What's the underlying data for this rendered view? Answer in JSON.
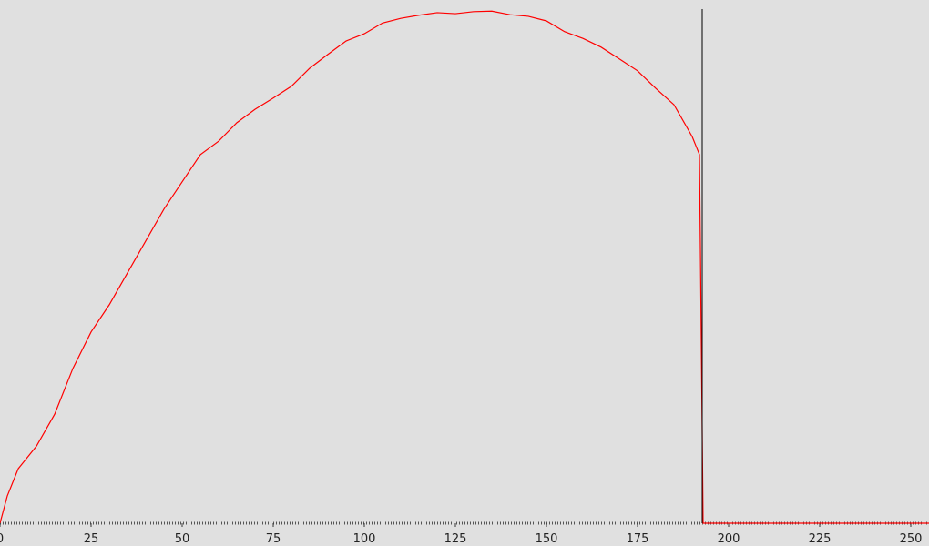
{
  "chart_data": {
    "type": "line",
    "x": [
      0,
      2,
      5,
      10,
      15,
      20,
      25,
      30,
      35,
      40,
      45,
      50,
      55,
      60,
      65,
      70,
      75,
      80,
      85,
      90,
      95,
      100,
      105,
      110,
      115,
      120,
      125,
      130,
      135,
      140,
      145,
      150,
      155,
      160,
      165,
      170,
      175,
      180,
      185,
      190,
      192,
      193,
      255
    ],
    "values": [
      0,
      5.3,
      10.6,
      15.0,
      21.2,
      30.1,
      37.2,
      42.5,
      48.7,
      54.9,
      61.1,
      66.4,
      71.7,
      74.3,
      77.9,
      80.5,
      82.7,
      85.0,
      88.5,
      91.2,
      93.8,
      95.2,
      97.3,
      98.2,
      98.8,
      99.3,
      99.1,
      99.5,
      99.6,
      98.9,
      98.6,
      97.7,
      95.6,
      94.3,
      92.6,
      90.3,
      88.0,
      84.6,
      81.4,
      75.2,
      71.7,
      0,
      0
    ],
    "color": "#ff0000",
    "xlim": [
      0,
      255
    ],
    "xticks": [
      0,
      25,
      50,
      75,
      100,
      125,
      150,
      175,
      200,
      225,
      250
    ],
    "ylim": [
      0,
      100
    ],
    "marker_x": 192.75,
    "marker_color": "#000000"
  }
}
